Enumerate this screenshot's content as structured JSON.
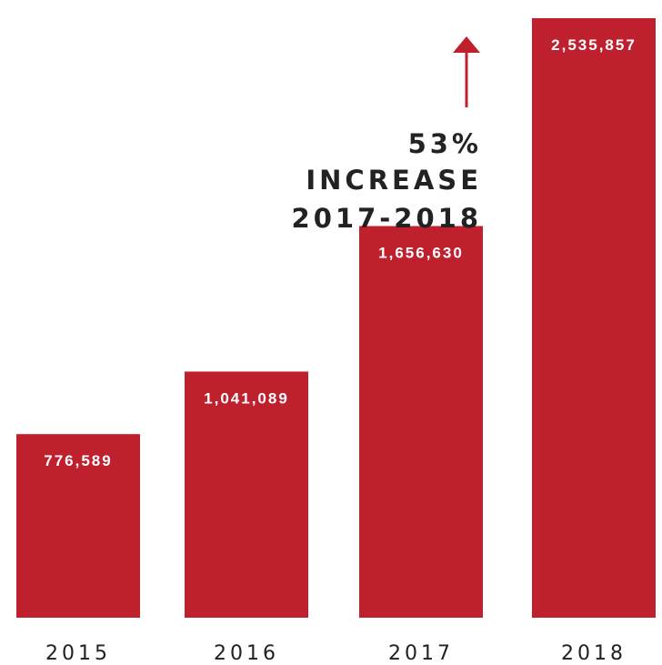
{
  "chart_data": {
    "type": "bar",
    "categories": [
      "2015",
      "2016",
      "2017",
      "2018"
    ],
    "values": [
      776589,
      1041089,
      1656630,
      2535857
    ],
    "value_labels": [
      "776,589",
      "1,041,089",
      "1,656,630",
      "2,535,857"
    ],
    "title": "",
    "xlabel": "",
    "ylabel": "",
    "ylim": [
      0,
      2535857
    ],
    "grid": false,
    "annotation": {
      "lines": [
        "53%",
        "INCREASE",
        "2017-2018"
      ]
    }
  },
  "colors": {
    "bar": "#be202e",
    "arrow": "#be202e",
    "text": "#222222",
    "bar_label": "#ffffff"
  },
  "icons": {
    "arrow": "arrow-up-icon"
  }
}
